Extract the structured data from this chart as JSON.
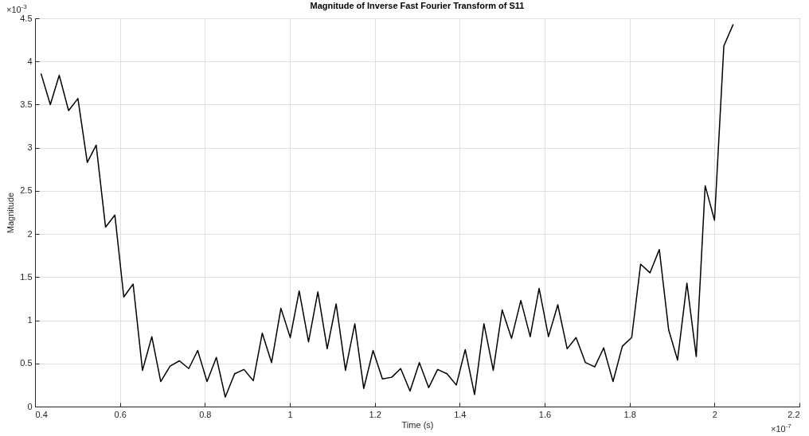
{
  "chart_data": {
    "type": "line",
    "title": "Magnitude of  Inverse Fast Fourier Transform of S11",
    "xlabel": "Time (s)",
    "ylabel": "Magnitude",
    "x": [
      0.414,
      0.436,
      0.457,
      0.479,
      0.501,
      0.523,
      0.544,
      0.566,
      0.588,
      0.609,
      0.631,
      0.653,
      0.675,
      0.696,
      0.718,
      0.74,
      0.762,
      0.783,
      0.805,
      0.827,
      0.848,
      0.87,
      0.892,
      0.914,
      0.935,
      0.957,
      0.979,
      1.001,
      1.022,
      1.044,
      1.066,
      1.088,
      1.109,
      1.131,
      1.153,
      1.174,
      1.196,
      1.218,
      1.24,
      1.261,
      1.283,
      1.305,
      1.327,
      1.348,
      1.37,
      1.392,
      1.413,
      1.435,
      1.457,
      1.479,
      1.5,
      1.522,
      1.544,
      1.566,
      1.587,
      1.609,
      1.631,
      1.653,
      1.674,
      1.696,
      1.718,
      1.739,
      1.761,
      1.783,
      1.805,
      1.826,
      1.848,
      1.87,
      1.892,
      1.913,
      1.935,
      1.957,
      1.978,
      2.0,
      2.022,
      2.044
    ],
    "series": [
      {
        "color": "#000000",
        "values": [
          3.86,
          3.5,
          3.84,
          3.43,
          3.57,
          2.83,
          3.03,
          2.08,
          2.22,
          1.27,
          1.42,
          0.42,
          0.81,
          0.29,
          0.47,
          0.53,
          0.44,
          0.65,
          0.29,
          0.57,
          0.11,
          0.38,
          0.43,
          0.3,
          0.85,
          0.51,
          1.14,
          0.8,
          1.34,
          0.75,
          1.33,
          0.67,
          1.19,
          0.42,
          0.96,
          0.21,
          0.65,
          0.32,
          0.34,
          0.44,
          0.18,
          0.51,
          0.22,
          0.43,
          0.38,
          0.25,
          0.66,
          0.14,
          0.96,
          0.42,
          1.12,
          0.79,
          1.23,
          0.81,
          1.37,
          0.81,
          1.18,
          0.67,
          0.8,
          0.51,
          0.46,
          0.68,
          0.29,
          0.7,
          0.8,
          1.65,
          1.55,
          1.82,
          0.89,
          0.54,
          1.43,
          0.58,
          2.56,
          2.16,
          4.18,
          4.43
        ]
      }
    ],
    "xlim": [
      0.4,
      2.2
    ],
    "xticks": [
      0.4,
      0.6,
      0.8,
      1,
      1.2,
      1.4,
      1.6,
      1.8,
      2,
      2.2
    ],
    "ylim": [
      0,
      4.5
    ],
    "yticks": [
      0,
      0.5,
      1,
      1.5,
      2,
      2.5,
      3,
      3.5,
      4,
      4.5
    ],
    "annotations": [
      "×10$^{-3}$",
      "×10$^{-7}$"
    ],
    "grid": true,
    "marker": "none",
    "line_style": "solid"
  }
}
